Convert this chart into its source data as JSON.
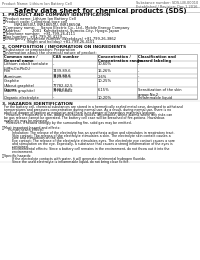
{
  "header_left": "Product Name: Lithium Ion Battery Cell",
  "header_right_line1": "Substance number: SDS-LIB-00010",
  "header_right_line2": "Established / Revision: Dec.1.2016",
  "title": "Safety data sheet for chemical products (SDS)",
  "s1_title": "1. PRODUCT AND COMPANY IDENTIFICATION",
  "s1_items": [
    "・Product name: Lithium Ion Battery Cell",
    "・Product code: Cylindrical-type cell",
    "          INR18650U, INR18650U, INR18650A",
    "・Company name:     Sanyo Electric Co., Ltd., Mobile Energy Company",
    "・Address:          2001  Kamitakatani, Sumoto-City, Hyogo, Japan",
    "・Telephone number:   +81-799-26-4111",
    "・Fax number:  +81-799-26-4129",
    "・Emergency telephone number (Weekdays) +81-799-26-3862",
    "                     (Night and holiday) +81-799-26-4101"
  ],
  "s2_title": "2. COMPOSITION / INFORMATION ON INGREDIENTS",
  "s2_sub1": "・Substance or preparation: Preparation",
  "s2_sub2": "・Information about the chemical nature of product:",
  "s3_title": "3. HAZARDS IDENTIFICATION",
  "s3_lines": [
    "  For the battery cell, chemical substances are stored in a hermetically sealed metal case, designed to withstand",
    "  temperatures and pressures-concentration during normal use. As a result, during normal use, there is no",
    "  physical danger of ignition or explosion and there is no danger of hazardous materials leakage.",
    "    However, if exposed to a fire, added mechanical shocks, decompose, where alarms where any risks can",
    "  be gas release cannot be operated. The battery cell case will be breached of fire-potions. Hazardous",
    "  materials may be released.",
    "    Moreover, if heated strongly by the surrounding fire, solid gas may be emitted.",
    "",
    "・Most important hazard and effects:",
    "      Human health effects:",
    "          Inhalation: The release of the electrolyte has an anesthesia action and stimulates in respiratory tract.",
    "          Skin contact: The release of the electrolyte stimulates a skin. The electrolyte skin contact causes a",
    "          sore and stimulation on the skin.",
    "          Eye contact: The release of the electrolyte stimulates eyes. The electrolyte eye contact causes a sore",
    "          and stimulation on the eye. Especially, a substance that causes a strong inflammation of the eyes is",
    "          contained.",
    "          Environmental effects: Since a battery cell remains in the environment, do not throw out it into the",
    "          environment.",
    "",
    "・Specific hazards:",
    "          If the electrolyte contacts with water, it will generate detrimental hydrogen fluoride.",
    "          Since the used electrolyte is inflammable liquid, do not bring close to fire."
  ],
  "bg_color": "#ffffff",
  "header_line_color": "#aaaaaa",
  "table_line_color": "#888888",
  "text_color": "#111111",
  "gray_text": "#444444"
}
